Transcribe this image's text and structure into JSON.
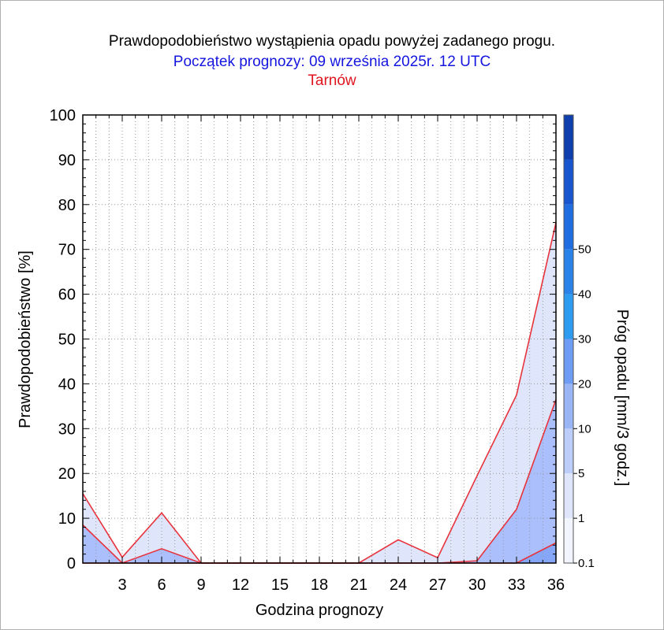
{
  "colors": {
    "subtitle": "#1515e0",
    "station": "#e0141e",
    "line": "#e8323c",
    "grid": "#9a9a9a"
  },
  "chart_data": {
    "type": "area",
    "title": "Prawdopodobieństwo wystąpienia opadu powyżej zadanego progu.",
    "subtitle": "Początek prognozy: 09 września 2025r. 12 UTC",
    "station": "Tarnów",
    "xlabel": "Godzina prognozy",
    "ylabel": "Prawdopodobieństwo [%]",
    "xlim": [
      0,
      36
    ],
    "ylim": [
      0,
      100
    ],
    "x_ticks": [
      3,
      6,
      9,
      12,
      15,
      18,
      21,
      24,
      27,
      30,
      33,
      36
    ],
    "y_ticks": [
      0,
      10,
      20,
      30,
      40,
      50,
      60,
      70,
      80,
      90,
      100
    ],
    "grid": true,
    "x": [
      0,
      3,
      6,
      9,
      12,
      15,
      18,
      21,
      24,
      27,
      30,
      33,
      36
    ],
    "series": [
      {
        "threshold": "0.1",
        "color": "#dfe6fb",
        "values": [
          15.5,
          1.3,
          11.2,
          0,
          0,
          0,
          0,
          0,
          5.2,
          1.2,
          19.5,
          37.5,
          76
        ]
      },
      {
        "threshold": "1",
        "color": "#aabffb",
        "values": [
          8.5,
          0,
          3.2,
          0,
          0,
          0,
          0,
          0,
          0,
          0,
          0.5,
          12,
          36.5
        ]
      },
      {
        "threshold": "5",
        "color": "#86a6f7",
        "values": [
          0,
          0,
          0,
          0,
          0,
          0,
          0,
          0,
          0,
          0,
          0,
          0,
          4.5
        ]
      }
    ],
    "colorbar": {
      "label": "Próg opadu [mm/3 godz.]",
      "levels": [
        "0.1",
        "1",
        "5",
        "10",
        "20",
        "30",
        "40",
        "50"
      ],
      "colors": [
        "#f3f5fe",
        "#dfe6fb",
        "#bccdfa",
        "#9ab5f6",
        "#6f9cf4",
        "#2d9bf0",
        "#2a83e8",
        "#1f6de0",
        "#1856d0",
        "#0e3fad"
      ]
    }
  }
}
